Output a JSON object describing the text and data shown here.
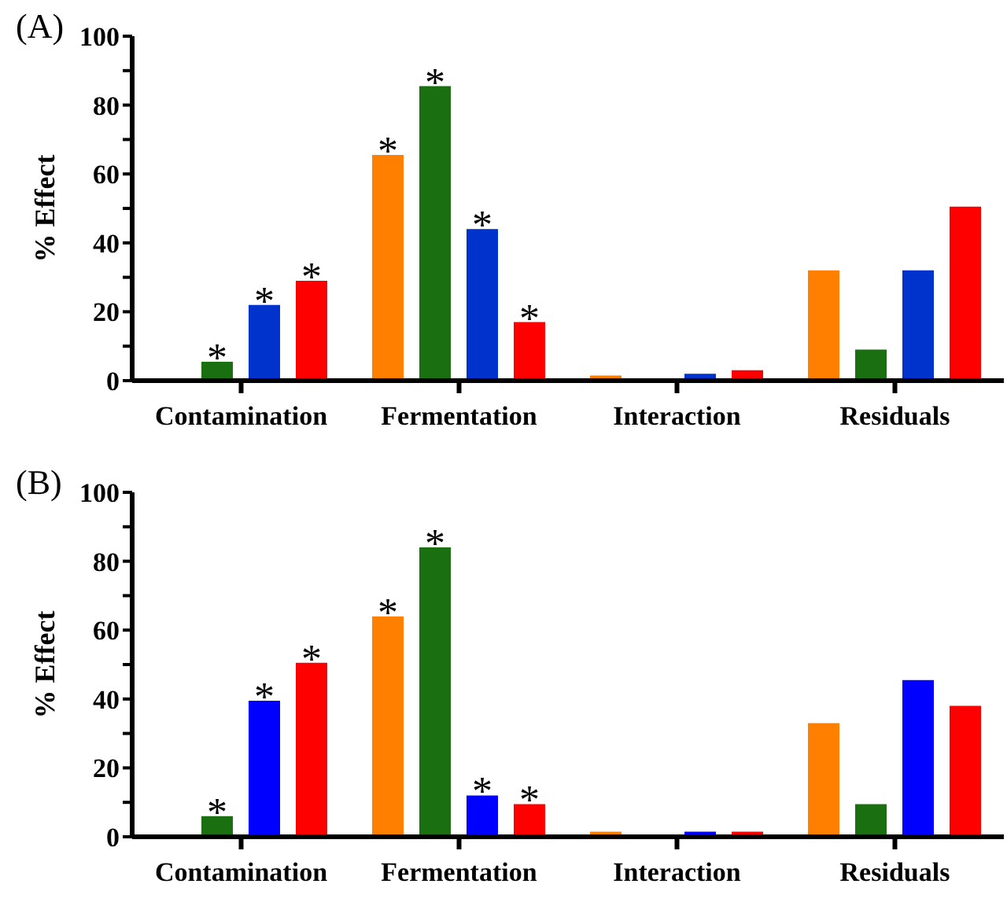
{
  "chart_data": [
    {
      "type": "bar",
      "title": "(A)",
      "ylabel": "% Effect",
      "categories": [
        "Contamination",
        "Fermentation",
        "Interaction",
        "Residuals"
      ],
      "series": [
        {
          "color": "#ff7f00",
          "values": [
            0,
            65.5,
            1.5,
            32
          ],
          "value_labels": [
            null,
            "*",
            null,
            null
          ]
        },
        {
          "color": "#1a7010",
          "values": [
            5.5,
            85.5,
            0,
            9
          ],
          "value_labels": [
            "*",
            "*",
            null,
            null
          ]
        },
        {
          "color": "#0033cc",
          "values": [
            22,
            44,
            2,
            32
          ],
          "value_labels": [
            "*",
            "*",
            null,
            null
          ]
        },
        {
          "color": "#ff0000",
          "values": [
            29,
            17,
            3,
            50.5
          ],
          "value_labels": [
            "*",
            "*",
            null,
            null
          ]
        }
      ],
      "ylim": [
        0,
        100
      ],
      "yticks": [
        0,
        {
          "value": 10,
          "label": null
        },
        20,
        {
          "value": 30,
          "label": null
        },
        40,
        {
          "value": 50,
          "label": null
        },
        60,
        {
          "value": 70,
          "label": null
        },
        80,
        {
          "value": 90,
          "label": null
        },
        100
      ]
    },
    {
      "type": "bar",
      "title": "(B)",
      "ylabel": "% Effect",
      "categories": [
        "Contamination",
        "Fermentation",
        "Interaction",
        "Residuals"
      ],
      "series": [
        {
          "color": "#ff7f00",
          "values": [
            0,
            64,
            1.5,
            33
          ],
          "value_labels": [
            null,
            "*",
            null,
            null
          ]
        },
        {
          "color": "#1a7010",
          "values": [
            6,
            84,
            0,
            9.5
          ],
          "value_labels": [
            "*",
            "*",
            null,
            null
          ]
        },
        {
          "color": "#0000ff",
          "values": [
            39.5,
            12,
            1.5,
            45.5
          ],
          "value_labels": [
            "*",
            "*",
            null,
            null
          ]
        },
        {
          "color": "#ff0000",
          "values": [
            50.5,
            9.5,
            1.5,
            38
          ],
          "value_labels": [
            "*",
            "*",
            null,
            null
          ]
        }
      ],
      "ylim": [
        0,
        100
      ],
      "yticks": [
        0,
        {
          "value": 10,
          "label": null
        },
        20,
        {
          "value": 30,
          "label": null
        },
        40,
        {
          "value": 50,
          "label": null
        },
        60,
        {
          "value": 70,
          "label": null
        },
        80,
        {
          "value": 90,
          "label": null
        },
        100
      ]
    }
  ]
}
